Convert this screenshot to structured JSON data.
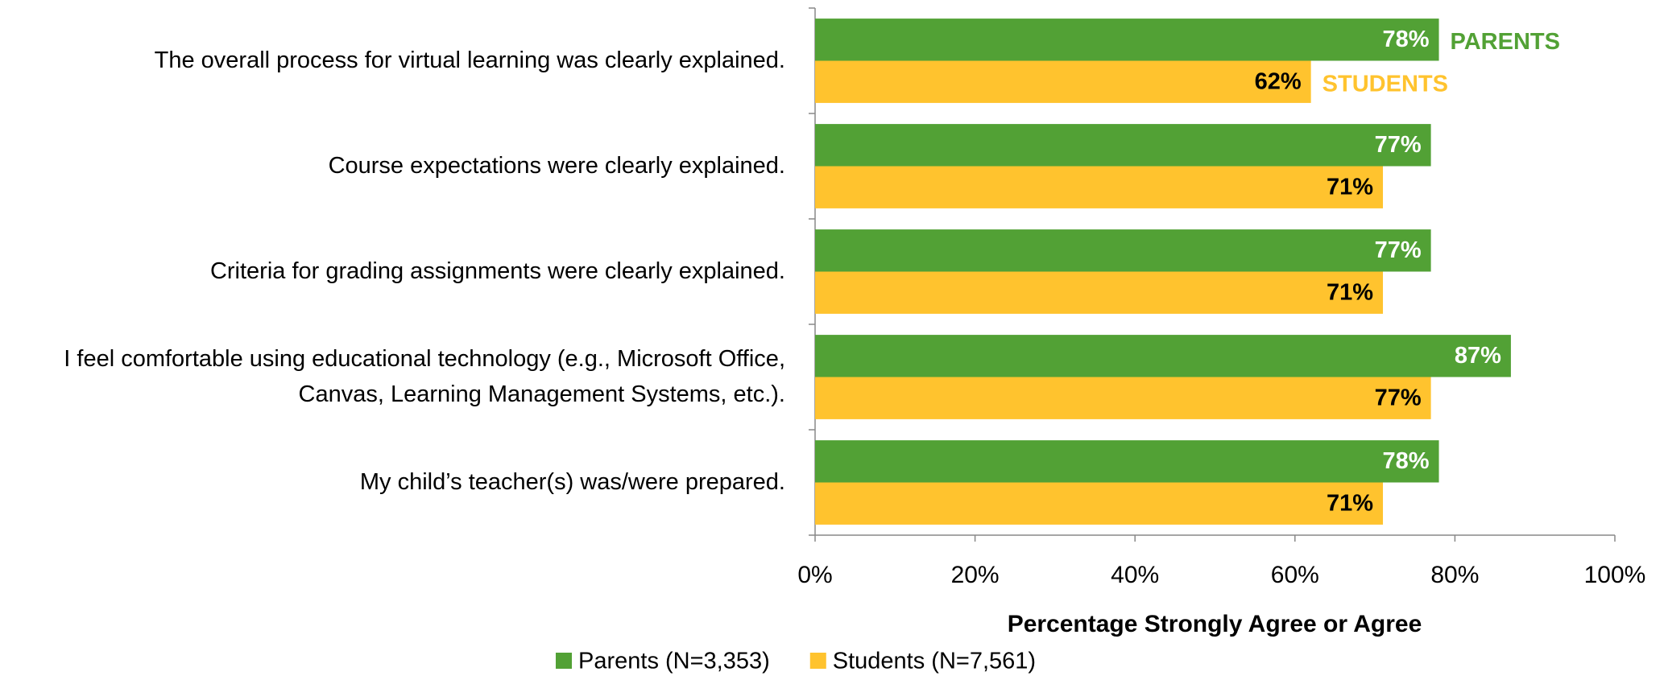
{
  "chart_data": {
    "type": "bar",
    "orientation": "horizontal",
    "categories": [
      "The overall process for virtual learning was clearly explained.",
      "Course expectations were clearly explained.",
      "Criteria for grading assignments were clearly explained.",
      "I feel comfortable using educational technology (e.g., Microsoft Office, Canvas, Learning Management Systems, etc.).",
      "My child’s teacher(s) was/were prepared."
    ],
    "series": [
      {
        "name": "Parents (N=3,353)",
        "color": "#52a135",
        "values": [
          78,
          77,
          77,
          87,
          78
        ],
        "value_labels": [
          "78%",
          "77%",
          "77%",
          "87%",
          "78%"
        ],
        "label_color": "#ffffff"
      },
      {
        "name": "Students (N=7,561)",
        "color": "#ffc32e",
        "values": [
          62,
          71,
          71,
          77,
          71
        ],
        "value_labels": [
          "62%",
          "71%",
          "71%",
          "77%",
          "71%"
        ],
        "label_color": "#000000"
      }
    ],
    "annotations": [
      "PARENTS",
      "STUDENTS"
    ],
    "xlabel": "Percentage Strongly Agree or Agree",
    "xlim": [
      0,
      100
    ],
    "xticks": [
      {
        "value": 0,
        "label": "0%"
      },
      {
        "value": 20,
        "label": "20%"
      },
      {
        "value": 40,
        "label": "40%"
      },
      {
        "value": 60,
        "label": "60%"
      },
      {
        "value": 80,
        "label": "80%"
      },
      {
        "value": 100,
        "label": "100%"
      }
    ],
    "legend": "bottom"
  }
}
